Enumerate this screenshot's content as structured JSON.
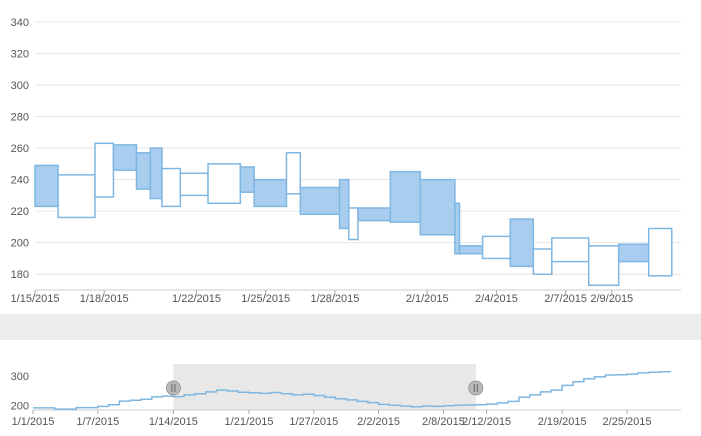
{
  "colors": {
    "bar_stroke": "#7fb7e2",
    "rising_fill": "#ffffff",
    "falling_fill": "#a9cdee",
    "grid": "#e6e6e6",
    "axis_text": "#555555",
    "navigator_line": "#7fb7e2",
    "navigator_window": "#e8e8e8",
    "handle": "#b9b9b9"
  },
  "chart_data": [
    {
      "type": "candlestick",
      "title": "",
      "ylim": [
        170,
        345
      ],
      "y_ticks": [
        180,
        200,
        220,
        240,
        260,
        280,
        300,
        320,
        340
      ],
      "x_range": [
        "2015-01-15",
        "2015-02-12"
      ],
      "x_tick_labels": [
        {
          "date": "2015-01-15",
          "label": "1/15/2015"
        },
        {
          "date": "2015-01-18",
          "label": "1/18/2015"
        },
        {
          "date": "2015-01-22",
          "label": "1/22/2015"
        },
        {
          "date": "2015-01-25",
          "label": "1/25/2015"
        },
        {
          "date": "2015-01-28",
          "label": "1/28/2015"
        },
        {
          "date": "2015-02-01",
          "label": "2/1/2015"
        },
        {
          "date": "2015-02-04",
          "label": "2/4/2015"
        },
        {
          "date": "2015-02-07",
          "label": "2/7/2015"
        },
        {
          "date": "2015-02-09",
          "label": "2/9/2015"
        }
      ],
      "grid": true,
      "candles": [
        {
          "start": "2015-01-15",
          "end": "2015-01-16",
          "open": 249,
          "close": 223
        },
        {
          "start": "2015-01-16",
          "end": "2015-01-17.6",
          "open": 216,
          "close": 243
        },
        {
          "start": "2015-01-17.6",
          "end": "2015-01-18.4",
          "open": 229,
          "close": 263
        },
        {
          "start": "2015-01-18.4",
          "end": "2015-01-19.4",
          "open": 262,
          "close": 246
        },
        {
          "start": "2015-01-19.4",
          "end": "2015-01-20",
          "open": 257,
          "close": 234
        },
        {
          "start": "2015-01-20",
          "end": "2015-01-20.5",
          "open": 260,
          "close": 228
        },
        {
          "start": "2015-01-20.5",
          "end": "2015-01-21.3",
          "open": 223,
          "close": 247
        },
        {
          "start": "2015-01-21.3",
          "end": "2015-01-22.5",
          "open": 230,
          "close": 244
        },
        {
          "start": "2015-01-22.5",
          "end": "2015-01-23.9",
          "open": 225,
          "close": 250
        },
        {
          "start": "2015-01-23.9",
          "end": "2015-01-24.5",
          "open": 248,
          "close": 232
        },
        {
          "start": "2015-01-24.5",
          "end": "2015-01-25.9",
          "open": 240,
          "close": 223
        },
        {
          "start": "2015-01-25.9",
          "end": "2015-01-26.5",
          "open": 231,
          "close": 257
        },
        {
          "start": "2015-01-26.5",
          "end": "2015-01-28.2",
          "open": 235,
          "close": 218
        },
        {
          "start": "2015-01-28.2",
          "end": "2015-01-28.6",
          "open": 240,
          "close": 209
        },
        {
          "start": "2015-01-28.6",
          "end": "2015-01-29",
          "open": 202,
          "close": 222
        },
        {
          "start": "2015-01-29",
          "end": "2015-01-30.4",
          "open": 222,
          "close": 214
        },
        {
          "start": "2015-01-30.4",
          "end": "2015-01-31.7",
          "open": 245,
          "close": 213
        },
        {
          "start": "2015-01-31.7",
          "end": "2015-02-02.2",
          "open": 240,
          "close": 205
        },
        {
          "start": "2015-02-02.2",
          "end": "2015-02-02.4",
          "open": 225,
          "close": 193
        },
        {
          "start": "2015-02-02.4",
          "end": "2015-02-03.4",
          "open": 198,
          "close": 193
        },
        {
          "start": "2015-02-03.4",
          "end": "2015-02-04.6",
          "open": 190,
          "close": 204
        },
        {
          "start": "2015-02-04.6",
          "end": "2015-02-05.6",
          "open": 215,
          "close": 185
        },
        {
          "start": "2015-02-05.6",
          "end": "2015-02-06.4",
          "open": 180,
          "close": 196
        },
        {
          "start": "2015-02-06.4",
          "end": "2015-02-08",
          "open": 188,
          "close": 203
        },
        {
          "start": "2015-02-08",
          "end": "2015-02-09.3",
          "open": 173,
          "close": 198
        },
        {
          "start": "2015-02-09.3",
          "end": "2015-02-10.6",
          "open": 199,
          "close": 188
        },
        {
          "start": "2015-02-10.6",
          "end": "2015-02-11.6",
          "open": 179,
          "close": 209
        }
      ]
    },
    {
      "type": "line",
      "role": "navigator",
      "ylim": [
        185,
        340
      ],
      "y_ticks": [
        200,
        300
      ],
      "x_range": [
        "2015-01-01",
        "2015-03-02"
      ],
      "x_tick_labels": [
        {
          "date": "2015-01-01",
          "label": "1/1/2015"
        },
        {
          "date": "2015-01-07",
          "label": "1/7/2015"
        },
        {
          "date": "2015-01-14",
          "label": "1/14/2015"
        },
        {
          "date": "2015-01-21",
          "label": "1/21/2015"
        },
        {
          "date": "2015-01-27",
          "label": "1/27/2015"
        },
        {
          "date": "2015-02-02",
          "label": "2/2/2015"
        },
        {
          "date": "2015-02-08",
          "label": "2/8/2015"
        },
        {
          "date": "2015-02-12",
          "label": "2/12/2015"
        },
        {
          "date": "2015-02-19",
          "label": "2/19/2015"
        },
        {
          "date": "2015-02-25",
          "label": "2/25/2015"
        }
      ],
      "selection": [
        "2015-01-14",
        "2015-02-11"
      ],
      "series": [
        {
          "points": [
            [
              "2015-01-01",
              192
            ],
            [
              "2015-01-03",
              188
            ],
            [
              "2015-01-05",
              193
            ],
            [
              "2015-01-07",
              197
            ],
            [
              "2015-01-08",
              203
            ],
            [
              "2015-01-09",
              215
            ],
            [
              "2015-01-10",
              218
            ],
            [
              "2015-01-11",
              221
            ],
            [
              "2015-01-12",
              229
            ],
            [
              "2015-01-13",
              232
            ],
            [
              "2015-01-14",
              230
            ],
            [
              "2015-01-15",
              236
            ],
            [
              "2015-01-16",
              240
            ],
            [
              "2015-01-17",
              246
            ],
            [
              "2015-01-18",
              252
            ],
            [
              "2015-01-19",
              249
            ],
            [
              "2015-01-20",
              245
            ],
            [
              "2015-01-21",
              243
            ],
            [
              "2015-01-22",
              241
            ],
            [
              "2015-01-23",
              244
            ],
            [
              "2015-01-24",
              240
            ],
            [
              "2015-01-25",
              236
            ],
            [
              "2015-01-26",
              238
            ],
            [
              "2015-01-27",
              234
            ],
            [
              "2015-01-28",
              228
            ],
            [
              "2015-01-29",
              223
            ],
            [
              "2015-01-30",
              219
            ],
            [
              "2015-01-31",
              214
            ],
            [
              "2015-02-01",
              210
            ],
            [
              "2015-02-02",
              204
            ],
            [
              "2015-02-03",
              201
            ],
            [
              "2015-02-04",
              198
            ],
            [
              "2015-02-05",
              196
            ],
            [
              "2015-02-06",
              198
            ],
            [
              "2015-02-07",
              197
            ],
            [
              "2015-02-08",
              199
            ],
            [
              "2015-02-09",
              201
            ],
            [
              "2015-02-10",
              202
            ],
            [
              "2015-02-11",
              203
            ],
            [
              "2015-02-12",
              205
            ],
            [
              "2015-02-13",
              209
            ],
            [
              "2015-02-14",
              214
            ],
            [
              "2015-02-15",
              228
            ],
            [
              "2015-02-16",
              236
            ],
            [
              "2015-02-17",
              246
            ],
            [
              "2015-02-18",
              252
            ],
            [
              "2015-02-19",
              268
            ],
            [
              "2015-02-20",
              280
            ],
            [
              "2015-02-21",
              290
            ],
            [
              "2015-02-22",
              297
            ],
            [
              "2015-02-23",
              303
            ],
            [
              "2015-02-24",
              304
            ],
            [
              "2015-02-25",
              306
            ],
            [
              "2015-02-26",
              310
            ],
            [
              "2015-02-27",
              312
            ],
            [
              "2015-02-28",
              314
            ],
            [
              "2015-03-01",
              312
            ]
          ]
        }
      ]
    }
  ]
}
